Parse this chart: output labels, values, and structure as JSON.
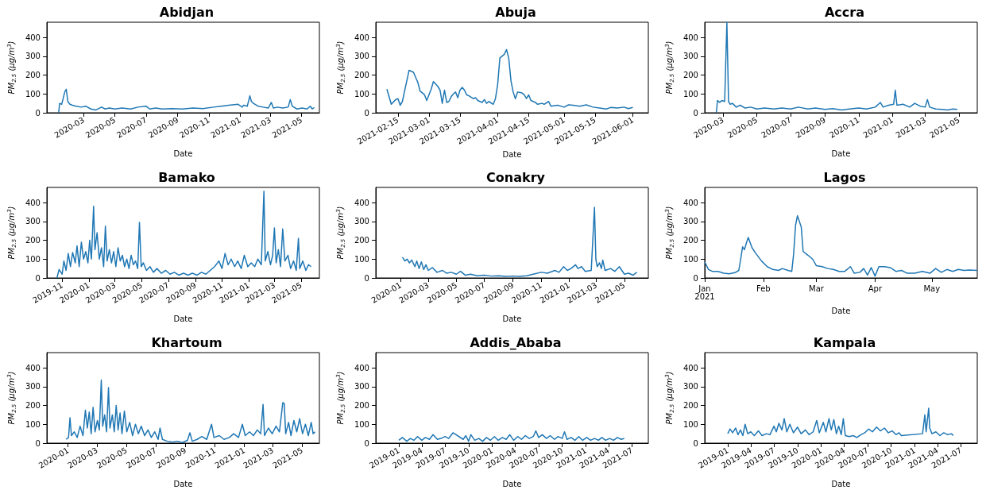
{
  "chart_data": [
    {
      "type": "line",
      "title": "Abidjan",
      "xlabel": "Date",
      "ylabel": "PM$_{2.5}$ (μg/m$^{3}$)",
      "color": "#1f77b4",
      "xlim": [
        "2019-12-20",
        "2021-06-05"
      ],
      "ylim": [
        0,
        480
      ],
      "yticks": [
        0,
        100,
        200,
        300,
        400
      ],
      "xticks": [
        "2020-03",
        "2020-05",
        "2020-07",
        "2020-09",
        "2020-11",
        "2021-01",
        "2021-03",
        "2021-05"
      ],
      "x": [
        "2020-01-12",
        "2020-01-14",
        "2020-01-18",
        "2020-01-24",
        "2020-01-27",
        "2020-01-30",
        "2020-02-03",
        "2020-02-08",
        "2020-02-15",
        "2020-02-25",
        "2020-03-05",
        "2020-03-15",
        "2020-03-25",
        "2020-04-05",
        "2020-04-12",
        "2020-04-20",
        "2020-05-01",
        "2020-05-15",
        "2020-06-01",
        "2020-06-15",
        "2020-07-01",
        "2020-07-08",
        "2020-07-20",
        "2020-08-01",
        "2020-08-20",
        "2020-09-10",
        "2020-10-01",
        "2020-10-20",
        "2020-11-10",
        "2020-11-25",
        "2020-12-10",
        "2020-12-28",
        "2021-01-05",
        "2021-01-08",
        "2021-01-15",
        "2021-01-20",
        "2021-01-23",
        "2021-01-27",
        "2021-02-05",
        "2021-02-15",
        "2021-02-25",
        "2021-03-03",
        "2021-03-07",
        "2021-03-15",
        "2021-03-25",
        "2021-04-05",
        "2021-04-09",
        "2021-04-13",
        "2021-04-22",
        "2021-05-02",
        "2021-05-12",
        "2021-05-18",
        "2021-05-22",
        "2021-05-26"
      ],
      "values": [
        0,
        50,
        45,
        110,
        125,
        60,
        45,
        40,
        35,
        30,
        35,
        20,
        15,
        30,
        20,
        25,
        20,
        25,
        20,
        30,
        35,
        20,
        25,
        20,
        22,
        20,
        25,
        22,
        30,
        35,
        40,
        45,
        30,
        40,
        35,
        90,
        60,
        50,
        35,
        30,
        25,
        55,
        25,
        30,
        25,
        30,
        70,
        35,
        20,
        25,
        20,
        35,
        20,
        28
      ]
    },
    {
      "type": "line",
      "title": "Abuja",
      "xlabel": "Date",
      "ylabel": "PM$_{2.5}$ (μg/m$^{3}$)",
      "color": "#1f77b4",
      "xlim": [
        "2021-02-05",
        "2021-06-08"
      ],
      "ylim": [
        0,
        480
      ],
      "yticks": [
        0,
        100,
        200,
        300,
        400
      ],
      "xticks": [
        "2021-02-15",
        "2021-03-01",
        "2021-03-15",
        "2021-04-01",
        "2021-04-15",
        "2021-05-01",
        "2021-05-15",
        "2021-06-01"
      ],
      "x": [
        "2021-02-10",
        "2021-02-12",
        "2021-02-14",
        "2021-02-15",
        "2021-02-16",
        "2021-02-17",
        "2021-02-19",
        "2021-02-20",
        "2021-02-22",
        "2021-02-24",
        "2021-02-25",
        "2021-02-27",
        "2021-02-28",
        "2021-03-02",
        "2021-03-03",
        "2021-03-05",
        "2021-03-06",
        "2021-03-07",
        "2021-03-08",
        "2021-03-09",
        "2021-03-10",
        "2021-03-11",
        "2021-03-12",
        "2021-03-13",
        "2021-03-14",
        "2021-03-15",
        "2021-03-16",
        "2021-03-17",
        "2021-03-18",
        "2021-03-19",
        "2021-03-21",
        "2021-03-22",
        "2021-03-23",
        "2021-03-25",
        "2021-03-26",
        "2021-03-27",
        "2021-03-28",
        "2021-03-30",
        "2021-03-31",
        "2021-04-01",
        "2021-04-02",
        "2021-04-04",
        "2021-04-05",
        "2021-04-06",
        "2021-04-07",
        "2021-04-08",
        "2021-04-09",
        "2021-04-10",
        "2021-04-12",
        "2021-04-13",
        "2021-04-14",
        "2021-04-15",
        "2021-04-16",
        "2021-04-18",
        "2021-04-19",
        "2021-04-21",
        "2021-04-22",
        "2021-04-24",
        "2021-04-25",
        "2021-04-28",
        "2021-05-01",
        "2021-05-03",
        "2021-05-05",
        "2021-05-08",
        "2021-05-11",
        "2021-05-14",
        "2021-05-17",
        "2021-05-20",
        "2021-05-22",
        "2021-05-25",
        "2021-05-28",
        "2021-05-30",
        "2021-06-01"
      ],
      "values": [
        125,
        45,
        70,
        75,
        40,
        60,
        170,
        225,
        215,
        160,
        115,
        95,
        65,
        125,
        165,
        140,
        120,
        50,
        120,
        55,
        60,
        85,
        100,
        110,
        80,
        120,
        135,
        120,
        95,
        90,
        75,
        80,
        65,
        55,
        70,
        50,
        60,
        45,
        75,
        150,
        290,
        310,
        335,
        290,
        170,
        110,
        75,
        110,
        105,
        95,
        75,
        95,
        65,
        55,
        45,
        50,
        45,
        60,
        35,
        40,
        30,
        42,
        40,
        35,
        42,
        30,
        25,
        20,
        28,
        25,
        30,
        22,
        28
      ]
    },
    {
      "type": "line",
      "title": "Accra",
      "xlabel": "Date",
      "ylabel": "PM$_{2.5}$ (μg/m$^{3}$)",
      "color": "#1f77b4",
      "xlim": [
        "2020-01-28",
        "2021-06-03"
      ],
      "ylim": [
        0,
        480
      ],
      "yticks": [
        0,
        100,
        200,
        300,
        400
      ],
      "xticks": [
        "2020-03",
        "2020-05",
        "2020-07",
        "2020-09",
        "2020-11",
        "2021-01",
        "2021-03",
        "2021-05"
      ],
      "x": [
        "2020-02-18",
        "2020-02-20",
        "2020-02-24",
        "2020-02-28",
        "2020-03-04",
        "2020-03-08",
        "2020-03-11",
        "2020-03-14",
        "2020-03-18",
        "2020-03-25",
        "2020-04-01",
        "2020-04-10",
        "2020-04-20",
        "2020-05-01",
        "2020-05-15",
        "2020-06-01",
        "2020-06-15",
        "2020-07-01",
        "2020-07-15",
        "2020-08-01",
        "2020-08-15",
        "2020-09-01",
        "2020-09-15",
        "2020-10-01",
        "2020-10-15",
        "2020-11-01",
        "2020-11-15",
        "2020-12-01",
        "2020-12-10",
        "2020-12-15",
        "2020-12-25",
        "2021-01-03",
        "2021-01-06",
        "2021-01-09",
        "2021-01-20",
        "2021-02-01",
        "2021-02-10",
        "2021-02-20",
        "2021-03-01",
        "2021-03-05",
        "2021-03-09",
        "2021-03-20",
        "2021-04-01",
        "2021-04-10",
        "2021-04-20",
        "2021-04-28"
      ],
      "values": [
        0,
        65,
        55,
        65,
        60,
        480,
        60,
        45,
        50,
        30,
        40,
        25,
        30,
        20,
        25,
        20,
        25,
        20,
        30,
        20,
        25,
        18,
        22,
        15,
        20,
        25,
        20,
        30,
        55,
        30,
        40,
        45,
        120,
        40,
        45,
        30,
        50,
        35,
        30,
        70,
        30,
        20,
        18,
        15,
        20,
        18
      ]
    },
    {
      "type": "line",
      "title": "Bamako",
      "xlabel": "Date",
      "ylabel": "PM$_{2.5}$ (μg/m$^{3}$)",
      "color": "#1f77b4",
      "xlim": [
        "2019-09-27",
        "2021-06-12"
      ],
      "ylim": [
        0,
        480
      ],
      "yticks": [
        0,
        100,
        200,
        300,
        400
      ],
      "xticks": [
        "2019-11",
        "2020-01",
        "2020-03",
        "2020-05",
        "2020-07",
        "2020-09",
        "2020-11",
        "2021-01",
        "2021-03",
        "2021-05"
      ],
      "x": [
        "2019-10-20",
        "2019-10-25",
        "2019-11-01",
        "2019-11-05",
        "2019-11-10",
        "2019-11-15",
        "2019-11-20",
        "2019-11-25",
        "2019-12-01",
        "2019-12-05",
        "2019-12-10",
        "2019-12-15",
        "2019-12-20",
        "2019-12-25",
        "2019-12-30",
        "2020-01-03",
        "2020-01-07",
        "2020-01-12",
        "2020-01-15",
        "2020-01-20",
        "2020-01-25",
        "2020-01-30",
        "2020-02-04",
        "2020-02-08",
        "2020-02-12",
        "2020-02-17",
        "2020-02-22",
        "2020-02-27",
        "2020-03-03",
        "2020-03-08",
        "2020-03-13",
        "2020-03-18",
        "2020-03-23",
        "2020-03-28",
        "2020-04-02",
        "2020-04-07",
        "2020-04-12",
        "2020-04-17",
        "2020-04-22",
        "2020-04-26",
        "2020-04-30",
        "2020-05-05",
        "2020-05-12",
        "2020-05-20",
        "2020-05-28",
        "2020-06-05",
        "2020-06-15",
        "2020-06-25",
        "2020-07-05",
        "2020-07-15",
        "2020-07-25",
        "2020-08-05",
        "2020-08-15",
        "2020-08-25",
        "2020-09-05",
        "2020-09-15",
        "2020-09-25",
        "2020-10-05",
        "2020-10-15",
        "2020-10-25",
        "2020-11-01",
        "2020-11-08",
        "2020-11-15",
        "2020-11-22",
        "2020-11-30",
        "2020-12-07",
        "2020-12-15",
        "2020-12-22",
        "2020-12-30",
        "2021-01-07",
        "2021-01-15",
        "2021-01-22",
        "2021-01-30",
        "2021-02-05",
        "2021-02-08",
        "2021-02-14",
        "2021-02-20",
        "2021-02-25",
        "2021-03-01",
        "2021-03-05",
        "2021-03-10",
        "2021-03-15",
        "2021-03-20",
        "2021-03-25",
        "2021-04-01",
        "2021-04-07",
        "2021-04-14",
        "2021-04-20",
        "2021-04-25",
        "2021-04-28",
        "2021-05-05",
        "2021-05-12",
        "2021-05-18",
        "2021-05-24"
      ],
      "values": [
        0,
        45,
        20,
        90,
        40,
        130,
        60,
        135,
        80,
        170,
        60,
        190,
        100,
        140,
        80,
        200,
        100,
        380,
        150,
        240,
        100,
        160,
        60,
        275,
        90,
        150,
        80,
        140,
        60,
        160,
        90,
        120,
        60,
        100,
        50,
        120,
        70,
        90,
        50,
        295,
        60,
        80,
        40,
        60,
        30,
        50,
        25,
        40,
        20,
        30,
        15,
        25,
        15,
        25,
        15,
        30,
        20,
        40,
        60,
        90,
        50,
        130,
        70,
        100,
        60,
        90,
        50,
        120,
        60,
        80,
        60,
        100,
        70,
        460,
        90,
        140,
        70,
        120,
        265,
        80,
        150,
        60,
        260,
        90,
        120,
        50,
        90,
        40,
        210,
        50,
        90,
        40,
        70,
        60
      ]
    },
    {
      "type": "line",
      "title": "Conakry",
      "xlabel": "Date",
      "ylabel": "PM$_{2.5}$ (μg/m$^{3}$)",
      "color": "#1f77b4",
      "xlim": [
        "2019-11-08",
        "2021-06-22"
      ],
      "ylim": [
        0,
        480
      ],
      "yticks": [
        0,
        100,
        200,
        300,
        400
      ],
      "xticks": [
        "2020-01",
        "2020-03",
        "2020-05",
        "2020-07",
        "2020-09",
        "2020-11",
        "2021-01",
        "2021-03",
        "2021-05"
      ],
      "x": [
        "2020-01-05",
        "2020-01-10",
        "2020-01-15",
        "2020-01-20",
        "2020-01-25",
        "2020-02-01",
        "2020-02-05",
        "2020-02-10",
        "2020-02-15",
        "2020-02-20",
        "2020-02-25",
        "2020-03-01",
        "2020-03-10",
        "2020-03-20",
        "2020-04-01",
        "2020-04-10",
        "2020-04-20",
        "2020-05-01",
        "2020-05-10",
        "2020-05-20",
        "2020-06-01",
        "2020-06-15",
        "2020-07-01",
        "2020-07-15",
        "2020-08-01",
        "2020-08-15",
        "2020-09-01",
        "2020-09-15",
        "2020-10-01",
        "2020-10-15",
        "2020-11-01",
        "2020-11-15",
        "2020-12-01",
        "2020-12-10",
        "2020-12-20",
        "2020-12-28",
        "2021-01-05",
        "2021-01-15",
        "2021-01-20",
        "2021-01-28",
        "2021-02-05",
        "2021-02-18",
        "2021-02-25",
        "2021-02-28",
        "2021-03-03",
        "2021-03-08",
        "2021-03-12",
        "2021-03-15",
        "2021-03-20",
        "2021-04-01",
        "2021-04-10",
        "2021-04-20",
        "2021-05-01",
        "2021-05-10",
        "2021-05-20",
        "2021-05-28"
      ],
      "values": [
        110,
        90,
        100,
        80,
        95,
        60,
        90,
        50,
        85,
        45,
        70,
        40,
        55,
        30,
        40,
        25,
        30,
        20,
        35,
        15,
        20,
        12,
        15,
        10,
        12,
        8,
        10,
        8,
        12,
        20,
        30,
        25,
        40,
        30,
        60,
        40,
        50,
        70,
        50,
        60,
        35,
        40,
        375,
        100,
        60,
        80,
        50,
        95,
        40,
        50,
        35,
        60,
        20,
        25,
        15,
        30
      ]
    },
    {
      "type": "line",
      "title": "Lagos",
      "xlabel": "Date",
      "ylabel": "PM$_{2.5}$ (μg/m$^{3}$)",
      "color": "#1f77b4",
      "xlim": [
        "2021-01-01",
        "2021-05-25"
      ],
      "ylim": [
        0,
        480
      ],
      "yticks": [
        0,
        100,
        200,
        300,
        400
      ],
      "xticks": [
        {
          "value": "2021-01",
          "label": "Jan\n2021"
        },
        {
          "value": "2021-02",
          "label": "Feb"
        },
        {
          "value": "2021-03",
          "label": "Mar"
        },
        {
          "value": "2021-04",
          "label": "Apr"
        },
        {
          "value": "2021-05",
          "label": "May"
        }
      ],
      "x": [
        "2021-01-01",
        "2021-01-03",
        "2021-01-05",
        "2021-01-08",
        "2021-01-11",
        "2021-01-14",
        "2021-01-17",
        "2021-01-19",
        "2021-01-20",
        "2021-01-21",
        "2021-01-22",
        "2021-01-23",
        "2021-01-24",
        "2021-01-26",
        "2021-01-28",
        "2021-01-31",
        "2021-02-03",
        "2021-02-06",
        "2021-02-09",
        "2021-02-11",
        "2021-02-14",
        "2021-02-16",
        "2021-02-17",
        "2021-02-18",
        "2021-02-19",
        "2021-02-20",
        "2021-02-21",
        "2021-02-22",
        "2021-02-24",
        "2021-02-27",
        "2021-03-01",
        "2021-03-04",
        "2021-03-07",
        "2021-03-10",
        "2021-03-13",
        "2021-03-16",
        "2021-03-19",
        "2021-03-21",
        "2021-03-24",
        "2021-03-26",
        "2021-03-28",
        "2021-03-30",
        "2021-04-01",
        "2021-04-03",
        "2021-04-06",
        "2021-04-09",
        "2021-04-12",
        "2021-04-15",
        "2021-04-18",
        "2021-04-22",
        "2021-04-26",
        "2021-04-30",
        "2021-05-03",
        "2021-05-06",
        "2021-05-09",
        "2021-05-12",
        "2021-05-15",
        "2021-05-18",
        "2021-05-21",
        "2021-05-25"
      ],
      "values": [
        85,
        45,
        35,
        35,
        25,
        22,
        28,
        40,
        100,
        165,
        150,
        185,
        215,
        160,
        130,
        90,
        60,
        45,
        40,
        50,
        40,
        35,
        130,
        280,
        330,
        300,
        270,
        140,
        125,
        100,
        65,
        60,
        50,
        45,
        35,
        35,
        60,
        25,
        30,
        50,
        15,
        55,
        10,
        60,
        60,
        55,
        35,
        40,
        25,
        25,
        35,
        25,
        50,
        30,
        45,
        35,
        45,
        40,
        42,
        40
      ]
    },
    {
      "type": "line",
      "title": "Khartoum",
      "xlabel": "Date",
      "ylabel": "PM$_{2.5}$ (μg/m$^{3}$)",
      "color": "#1f77b4",
      "xlim": [
        "2019-11-18",
        "2021-06-06"
      ],
      "ylim": [
        0,
        480
      ],
      "yticks": [
        0,
        100,
        200,
        300,
        400
      ],
      "xticks": [
        "2020-01",
        "2020-03",
        "2020-05",
        "2020-07",
        "2020-09",
        "2020-11",
        "2021-01",
        "2021-03",
        "2021-05"
      ],
      "x": [
        "2019-12-28",
        "2020-01-02",
        "2020-01-05",
        "2020-01-08",
        "2020-01-14",
        "2020-01-20",
        "2020-01-26",
        "2020-02-01",
        "2020-02-06",
        "2020-02-10",
        "2020-02-14",
        "2020-02-18",
        "2020-02-22",
        "2020-02-26",
        "2020-03-02",
        "2020-03-06",
        "2020-03-10",
        "2020-03-13",
        "2020-03-17",
        "2020-03-21",
        "2020-03-25",
        "2020-03-28",
        "2020-04-02",
        "2020-04-06",
        "2020-04-10",
        "2020-04-14",
        "2020-04-18",
        "2020-04-22",
        "2020-04-27",
        "2020-05-02",
        "2020-05-08",
        "2020-05-14",
        "2020-05-20",
        "2020-05-26",
        "2020-06-01",
        "2020-06-08",
        "2020-06-15",
        "2020-06-22",
        "2020-06-29",
        "2020-07-06",
        "2020-07-10",
        "2020-07-15",
        "2020-07-25",
        "2020-08-05",
        "2020-08-15",
        "2020-08-25",
        "2020-09-05",
        "2020-09-10",
        "2020-09-15",
        "2020-09-25",
        "2020-10-05",
        "2020-10-15",
        "2020-10-25",
        "2020-10-30",
        "2020-11-10",
        "2020-11-20",
        "2020-12-01",
        "2020-12-10",
        "2020-12-20",
        "2020-12-28",
        "2021-01-03",
        "2021-01-12",
        "2021-01-20",
        "2021-01-28",
        "2021-02-04",
        "2021-02-09",
        "2021-02-12",
        "2021-02-20",
        "2021-02-28",
        "2021-03-08",
        "2021-03-15",
        "2021-03-22",
        "2021-03-25",
        "2021-03-28",
        "2021-04-03",
        "2021-04-08",
        "2021-04-14",
        "2021-04-20",
        "2021-04-26",
        "2021-05-02",
        "2021-05-08",
        "2021-05-14",
        "2021-05-20",
        "2021-05-24",
        "2021-05-28"
      ],
      "values": [
        20,
        30,
        135,
        40,
        60,
        30,
        90,
        40,
        175,
        80,
        165,
        50,
        190,
        60,
        120,
        70,
        335,
        90,
        150,
        60,
        295,
        80,
        150,
        60,
        200,
        70,
        160,
        50,
        170,
        60,
        110,
        40,
        100,
        50,
        90,
        40,
        70,
        30,
        60,
        20,
        80,
        20,
        10,
        5,
        10,
        3,
        15,
        55,
        10,
        20,
        35,
        20,
        100,
        30,
        40,
        20,
        30,
        50,
        30,
        100,
        40,
        60,
        40,
        70,
        50,
        205,
        40,
        80,
        50,
        90,
        60,
        215,
        210,
        50,
        110,
        40,
        120,
        60,
        130,
        50,
        100,
        40,
        110,
        50,
        60
      ]
    },
    {
      "type": "line",
      "title": "Addis_Ababa",
      "xlabel": "Date",
      "ylabel": "PM$_{2.5}$ (μg/m$^{3}$)",
      "color": "#1f77b4",
      "xlim": [
        "2018-10-03",
        "2021-09-03"
      ],
      "ylim": [
        0,
        480
      ],
      "yticks": [
        0,
        100,
        200,
        300,
        400
      ],
      "xticks": [
        "2019-01",
        "2019-04",
        "2019-07",
        "2019-10",
        "2020-01",
        "2020-04",
        "2020-07",
        "2020-10",
        "2021-01",
        "2021-04",
        "2021-07"
      ],
      "x": [
        "2019-01-01",
        "2019-01-15",
        "2019-02-01",
        "2019-02-15",
        "2019-03-01",
        "2019-03-15",
        "2019-04-01",
        "2019-04-15",
        "2019-05-01",
        "2019-05-15",
        "2019-06-01",
        "2019-06-15",
        "2019-07-01",
        "2019-07-15",
        "2019-08-01",
        "2019-09-10",
        "2019-09-20",
        "2019-10-01",
        "2019-10-10",
        "2019-10-25",
        "2019-11-10",
        "2019-11-25",
        "2019-12-10",
        "2019-12-25",
        "2020-01-10",
        "2020-01-25",
        "2020-02-10",
        "2020-02-25",
        "2020-03-10",
        "2020-03-25",
        "2020-04-10",
        "2020-04-25",
        "2020-05-10",
        "2020-05-25",
        "2020-06-10",
        "2020-06-20",
        "2020-07-01",
        "2020-07-15",
        "2020-08-01",
        "2020-08-15",
        "2020-09-01",
        "2020-09-15",
        "2020-10-01",
        "2020-10-10",
        "2020-10-20",
        "2020-11-05",
        "2020-11-20",
        "2020-12-05",
        "2020-12-20",
        "2021-01-05",
        "2021-01-20",
        "2021-02-05",
        "2021-02-20",
        "2021-03-05",
        "2021-03-20",
        "2021-04-05",
        "2021-04-20",
        "2021-05-05",
        "2021-05-20",
        "2021-06-01"
      ],
      "values": [
        15,
        30,
        10,
        25,
        15,
        35,
        15,
        30,
        20,
        45,
        20,
        25,
        35,
        25,
        55,
        20,
        40,
        10,
        45,
        15,
        25,
        10,
        30,
        15,
        35,
        15,
        30,
        20,
        45,
        15,
        35,
        20,
        40,
        25,
        35,
        65,
        30,
        45,
        25,
        40,
        20,
        35,
        25,
        60,
        20,
        30,
        15,
        35,
        15,
        30,
        15,
        25,
        15,
        30,
        15,
        25,
        15,
        30,
        20,
        25
      ]
    },
    {
      "type": "line",
      "title": "Kampala",
      "xlabel": "Date",
      "ylabel": "PM$_{2.5}$ (μg/m$^{3}$)",
      "color": "#1f77b4",
      "xlim": [
        "2018-10-03",
        "2021-09-03"
      ],
      "ylim": [
        0,
        480
      ],
      "yticks": [
        0,
        100,
        200,
        300,
        400
      ],
      "xticks": [
        "2019-01",
        "2019-04",
        "2019-07",
        "2019-10",
        "2020-01",
        "2020-04",
        "2020-07",
        "2020-10",
        "2021-01",
        "2021-04",
        "2021-07"
      ],
      "x": [
        "2019-01-01",
        "2019-01-10",
        "2019-01-20",
        "2019-02-01",
        "2019-02-10",
        "2019-02-20",
        "2019-03-01",
        "2019-03-10",
        "2019-03-20",
        "2019-04-01",
        "2019-04-15",
        "2019-05-01",
        "2019-05-15",
        "2019-06-01",
        "2019-06-15",
        "2019-07-01",
        "2019-07-10",
        "2019-07-20",
        "2019-08-01",
        "2019-08-10",
        "2019-08-20",
        "2019-09-01",
        "2019-09-15",
        "2019-10-01",
        "2019-10-15",
        "2019-11-01",
        "2019-11-15",
        "2019-12-01",
        "2019-12-15",
        "2019-12-25",
        "2020-01-10",
        "2020-01-20",
        "2020-02-01",
        "2020-02-10",
        "2020-02-20",
        "2020-03-01",
        "2020-03-10",
        "2020-03-20",
        "2020-03-28",
        "2020-04-05",
        "2020-04-20",
        "2020-05-05",
        "2020-05-20",
        "2020-06-05",
        "2020-06-20",
        "2020-07-05",
        "2020-07-20",
        "2020-08-05",
        "2020-08-20",
        "2020-09-05",
        "2020-09-20",
        "2020-10-05",
        "2020-10-20",
        "2020-11-01",
        "2020-11-10",
        "2021-02-01",
        "2021-02-10",
        "2021-02-15",
        "2021-02-25",
        "2021-03-01",
        "2021-03-10",
        "2021-03-25",
        "2021-04-10",
        "2021-04-25",
        "2021-05-10",
        "2021-05-25",
        "2021-06-01"
      ],
      "values": [
        50,
        75,
        55,
        80,
        45,
        70,
        40,
        100,
        50,
        60,
        40,
        65,
        40,
        50,
        45,
        90,
        60,
        105,
        70,
        130,
        60,
        100,
        55,
        85,
        50,
        70,
        45,
        60,
        120,
        55,
        110,
        60,
        130,
        70,
        125,
        50,
        90,
        45,
        130,
        40,
        35,
        40,
        30,
        45,
        55,
        75,
        60,
        85,
        65,
        80,
        55,
        65,
        45,
        55,
        40,
        50,
        150,
        60,
        185,
        80,
        50,
        60,
        40,
        55,
        45,
        50,
        40
      ]
    }
  ]
}
